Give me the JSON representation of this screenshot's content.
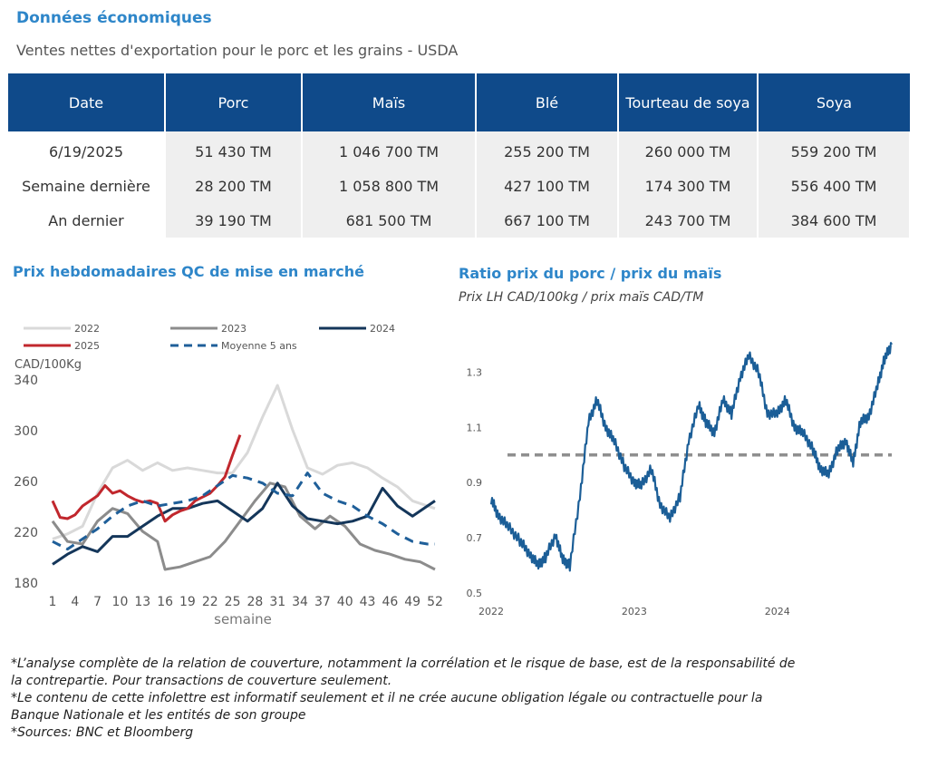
{
  "header": {
    "title": "Données économiques",
    "subtitle": "Ventes nettes d'exportation pour le porc et les grains - USDA"
  },
  "export_table": {
    "columns": [
      "Date",
      "Porc",
      "Maïs",
      "Blé",
      "Tourteau de soya",
      "Soya"
    ],
    "rows": [
      [
        "6/19/2025",
        "51 430 TM",
        "1 046 700 TM",
        "255 200 TM",
        "260 000 TM",
        "559 200 TM"
      ],
      [
        "Semaine dernière",
        "28 200 TM",
        "1 058 800 TM",
        "427 100 TM",
        "174 300 TM",
        "556 400 TM"
      ],
      [
        "An dernier",
        "39 190 TM",
        "681 500 TM",
        "667 100 TM",
        "243 700 TM",
        "384 600 TM"
      ]
    ]
  },
  "chart_data": [
    {
      "type": "line",
      "title": "Prix hebdomadaires QC de mise en marché",
      "ylabel": "CAD/100Kg",
      "xlabel": "semaine",
      "ylim": [
        180,
        340
      ],
      "yticks": [
        180,
        220,
        260,
        300,
        340
      ],
      "xlim": [
        1,
        52
      ],
      "xticks": [
        1,
        4,
        7,
        10,
        13,
        16,
        19,
        22,
        25,
        28,
        31,
        34,
        37,
        40,
        43,
        46,
        49,
        52
      ],
      "legend_position": "top",
      "grid": false,
      "series": [
        {
          "name": "2022",
          "color": "#d9d9d9",
          "dash": false,
          "x": [
            1,
            3,
            5,
            7,
            9,
            11,
            13,
            15,
            17,
            19,
            21,
            23,
            25,
            27,
            29,
            31,
            33,
            35,
            37,
            39,
            41,
            43,
            45,
            47,
            49,
            51,
            52
          ],
          "y": [
            214,
            218,
            224,
            250,
            270,
            276,
            268,
            274,
            268,
            270,
            268,
            266,
            266,
            282,
            310,
            335,
            300,
            270,
            265,
            272,
            274,
            270,
            262,
            255,
            244,
            240,
            238
          ]
        },
        {
          "name": "2023",
          "color": "#8c8c8c",
          "dash": false,
          "x": [
            1,
            3,
            5,
            7,
            9,
            11,
            13,
            15,
            16,
            18,
            20,
            22,
            24,
            26,
            28,
            30,
            32,
            34,
            36,
            38,
            40,
            42,
            44,
            46,
            48,
            50,
            52
          ],
          "y": [
            228,
            212,
            210,
            228,
            238,
            234,
            220,
            212,
            190,
            192,
            196,
            200,
            212,
            228,
            244,
            258,
            255,
            232,
            222,
            232,
            224,
            210,
            205,
            202,
            198,
            196,
            190
          ]
        },
        {
          "name": "2024",
          "color": "#14365a",
          "dash": false,
          "x": [
            1,
            3,
            5,
            7,
            9,
            11,
            13,
            15,
            17,
            19,
            21,
            23,
            25,
            27,
            29,
            31,
            33,
            35,
            37,
            39,
            41,
            43,
            45,
            47,
            49,
            51,
            52
          ],
          "y": [
            194,
            202,
            208,
            204,
            216,
            216,
            224,
            232,
            238,
            238,
            242,
            244,
            236,
            228,
            238,
            258,
            240,
            230,
            228,
            226,
            228,
            232,
            254,
            240,
            232,
            240,
            244
          ]
        },
        {
          "name": "2025",
          "color": "#c1272d",
          "dash": false,
          "x": [
            1,
            2,
            3,
            4,
            5,
            6,
            7,
            8,
            9,
            10,
            11,
            12,
            13,
            14,
            15,
            16,
            17,
            18,
            19,
            20,
            21,
            22,
            23,
            24,
            25,
            26
          ],
          "y": [
            244,
            231,
            230,
            233,
            240,
            244,
            248,
            256,
            250,
            252,
            248,
            245,
            243,
            244,
            242,
            228,
            233,
            236,
            238,
            244,
            247,
            250,
            256,
            263,
            280,
            296
          ]
        },
        {
          "name": "Moyenne 5 ans",
          "color": "#1f5f99",
          "dash": true,
          "x": [
            1,
            3,
            5,
            7,
            9,
            11,
            13,
            15,
            17,
            19,
            21,
            23,
            25,
            27,
            29,
            31,
            33,
            35,
            37,
            39,
            41,
            43,
            45,
            47,
            49,
            51,
            52
          ],
          "y": [
            212,
            206,
            214,
            222,
            232,
            240,
            244,
            240,
            242,
            244,
            248,
            256,
            264,
            262,
            258,
            250,
            248,
            266,
            250,
            244,
            240,
            232,
            226,
            218,
            212,
            210,
            210
          ]
        }
      ]
    },
    {
      "type": "line",
      "title": "Ratio prix du porc / prix du maïs",
      "subtitle": "Prix LH CAD/100kg / prix maïs CAD/TM",
      "ylim": [
        0.5,
        1.4
      ],
      "yticks": [
        0.5,
        0.7,
        0.9,
        1.1,
        1.3
      ],
      "xticks": [
        "2022",
        "2023",
        "2024"
      ],
      "xlim": [
        2022.0,
        2024.8
      ],
      "reference_line": 1.0,
      "grid": false,
      "series": [
        {
          "name": "Ratio",
          "color": "#1b5e97",
          "x": [
            2022.0,
            2022.05,
            2022.12,
            2022.2,
            2022.27,
            2022.33,
            2022.38,
            2022.45,
            2022.5,
            2022.55,
            2022.62,
            2022.68,
            2022.74,
            2022.8,
            2022.86,
            2022.93,
            2023.0,
            2023.05,
            2023.12,
            2023.18,
            2023.25,
            2023.32,
            2023.38,
            2023.45,
            2023.5,
            2023.56,
            2023.62,
            2023.68,
            2023.74,
            2023.8,
            2023.87,
            2023.93,
            2024.0,
            2024.06,
            2024.12,
            2024.18,
            2024.25,
            2024.3,
            2024.36,
            2024.42,
            2024.48,
            2024.53,
            2024.58,
            2024.64,
            2024.7,
            2024.75,
            2024.8
          ],
          "y": [
            0.84,
            0.78,
            0.74,
            0.69,
            0.64,
            0.6,
            0.63,
            0.71,
            0.62,
            0.6,
            0.85,
            1.12,
            1.2,
            1.1,
            1.05,
            0.96,
            0.9,
            0.89,
            0.95,
            0.82,
            0.77,
            0.85,
            1.05,
            1.18,
            1.12,
            1.08,
            1.2,
            1.15,
            1.28,
            1.36,
            1.3,
            1.15,
            1.15,
            1.2,
            1.1,
            1.08,
            1.02,
            0.95,
            0.93,
            1.02,
            1.05,
            0.97,
            1.12,
            1.14,
            1.25,
            1.35,
            1.4
          ]
        }
      ]
    }
  ],
  "notes": [
    "*L’analyse complète de la relation de couverture, notamment la corrélation et le risque de base, est de la responsabilité de la contrepartie. Pour transactions de couverture seulement.",
    "*Le contenu de cette infolettre est informatif seulement et il ne crée aucune obligation légale ou contractuelle pour la Banque Nationale et les entités de son groupe",
    "*Sources: BNC et Bloomberg"
  ]
}
